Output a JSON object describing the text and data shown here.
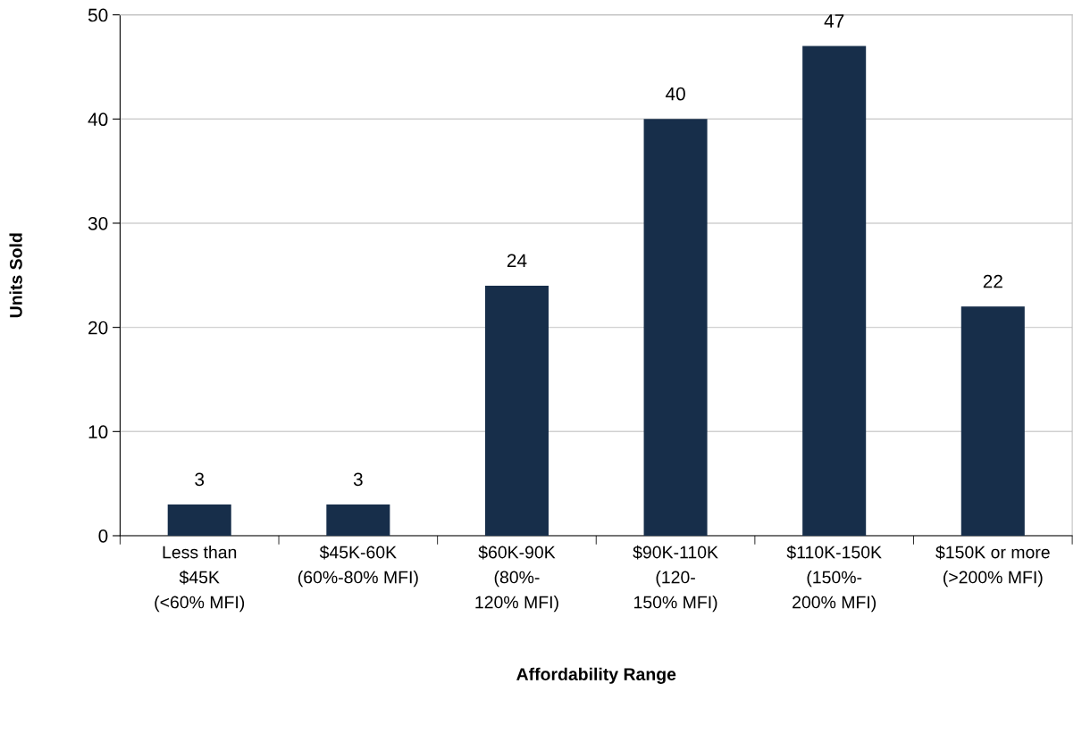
{
  "chart_data": {
    "type": "bar",
    "categories": [
      "Less than\n$45K\n(<60% MFI)",
      "$45K-60K\n(60%-80% MFI)",
      "$60K-90K\n(80%-\n120% MFI)",
      "$90K-110K\n(120-\n150% MFI)",
      "$110K-150K\n(150%-\n200% MFI)",
      "$150K or more\n(>200% MFI)"
    ],
    "values": [
      3,
      3,
      24,
      40,
      47,
      22
    ],
    "color": "#172e4a",
    "xlabel": "Affordability Range",
    "ylabel": "Units Sold",
    "ylim": [
      0,
      50
    ],
    "yticks": [
      0,
      10,
      20,
      30,
      40,
      50
    ],
    "grid": "y",
    "data_labels": true
  }
}
